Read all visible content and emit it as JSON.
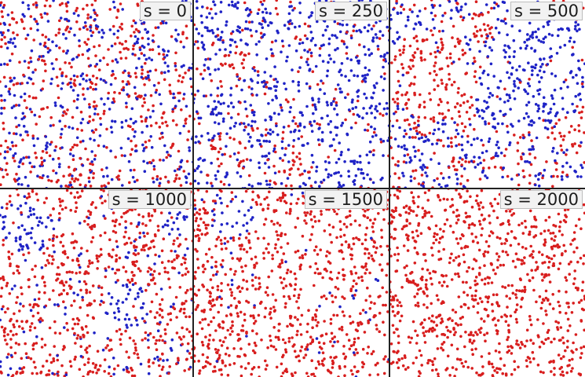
{
  "figure": {
    "colors": {
      "red": "#d81e1e",
      "blue": "#1f23c6",
      "background": "#ffffff",
      "divider": "#222222"
    },
    "panels": [
      {
        "label": "s = 0",
        "red_fraction": 0.52,
        "blue_regions": []
      },
      {
        "label": "s = 250",
        "red_fraction": 0.2,
        "blue_regions": []
      },
      {
        "label": "s = 500",
        "red_fraction": 0.42,
        "blue_regions": []
      },
      {
        "label": "s = 1000",
        "red_fraction": 0.85,
        "blue_regions": []
      },
      {
        "label": "s = 1500",
        "red_fraction": 0.96,
        "blue_regions": []
      },
      {
        "label": "s = 2000",
        "red_fraction": 1.0,
        "blue_regions": []
      }
    ]
  }
}
